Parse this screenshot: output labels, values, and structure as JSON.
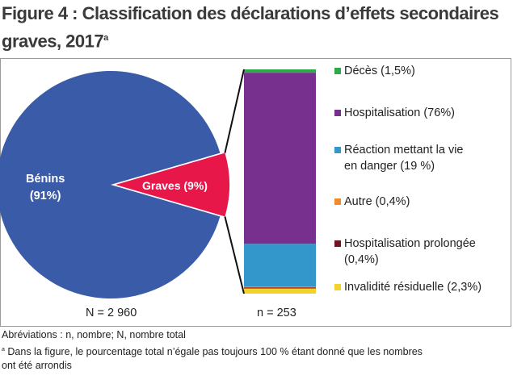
{
  "chart_data": {
    "type": "bar-of-pie",
    "title": "Figure 4 : Classification des déclarations d’effets secondaires graves, 2017",
    "title_superscript": "a",
    "pie": {
      "slices": [
        {
          "label": "Bénins",
          "pct_label": "(91%)",
          "value": 91,
          "color": "#3a5ba8"
        },
        {
          "label": "Graves (9%)",
          "value": 9,
          "color": "#e8174a",
          "exploded": true
        }
      ],
      "n_label": "N = 2 960"
    },
    "bar": {
      "segments": [
        {
          "label": "Décès (1,5%)",
          "value": 1.5,
          "color": "#2eaa4a"
        },
        {
          "label": "Hospitalisation (76%)",
          "value": 76,
          "color": "#77308d"
        },
        {
          "label": "Réaction mettant la vie en danger (19 %)",
          "label_lines": [
            "Réaction mettant la vie",
            "en danger (19 %)"
          ],
          "value": 19,
          "color": "#3497cb"
        },
        {
          "label": "Autre (0,4%)",
          "value": 0.4,
          "color": "#f08a2c"
        },
        {
          "label": "Hospitalisation prolongée (0,4%)",
          "label_lines": [
            "Hospitalisation prolongée",
            "(0,4%)"
          ],
          "value": 0.4,
          "color": "#7a1020"
        },
        {
          "label": "Invalidité résiduelle (2,3%)",
          "value": 2.3,
          "color": "#f4d22e"
        }
      ],
      "n_label": "n = 253"
    }
  },
  "footnotes": {
    "abbrev": "Abréviations : n, nombre; N, nombre total",
    "note_marker": "a",
    "note_line1": "Dans la figure, le pourcentage  total n’égale pas toujours 100 % étant donné que les nombres",
    "note_line2": "ont été arrondis"
  }
}
